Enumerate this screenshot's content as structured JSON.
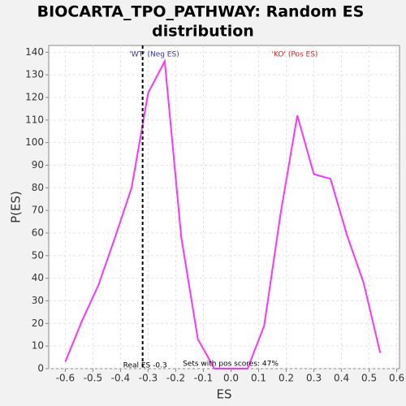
{
  "chart_data": {
    "type": "line",
    "title_lines": [
      "BIOCARTA_TPO_PATHWAY: Random ES",
      "distribution"
    ],
    "x_label": "ES",
    "y_label": "P(ES)",
    "x": [
      -0.6,
      -0.54,
      -0.48,
      -0.42,
      -0.36,
      -0.3,
      -0.24,
      -0.18,
      -0.12,
      -0.06,
      0,
      0.06,
      0.12,
      0.18,
      0.24,
      0.3,
      0.36,
      0.42,
      0.48,
      0.54
    ],
    "series": [
      {
        "name": "Random ES",
        "color": "#ff33ff",
        "values": [
          3,
          21,
          37,
          58,
          80,
          122,
          136,
          58,
          13,
          0,
          0,
          0,
          19,
          69,
          112,
          86,
          84,
          59,
          38,
          7
        ]
      }
    ],
    "xlim": [
      -0.66,
      0.61
    ],
    "ylim": [
      0,
      143
    ],
    "xticks": [
      -0.6,
      -0.5,
      -0.4,
      -0.3,
      -0.2,
      -0.1,
      {
        "value": 0,
        "label": "0.0"
      },
      0.1,
      0.2,
      0.3,
      0.4,
      0.5,
      0.6
    ],
    "yticks": [
      0,
      10,
      20,
      30,
      40,
      50,
      60,
      70,
      80,
      90,
      100,
      110,
      120,
      130,
      140
    ],
    "grid": true,
    "real_es": -0.32,
    "real_es_label": "Real ES -0.3",
    "neg_label": "'WT' (Neg ES)",
    "neg_color": "#3333aa",
    "pos_label": "'KO' (Pos ES)",
    "pos_color": "#dd2222",
    "pos_scores_label": "Sets with pos scores: 47%"
  }
}
